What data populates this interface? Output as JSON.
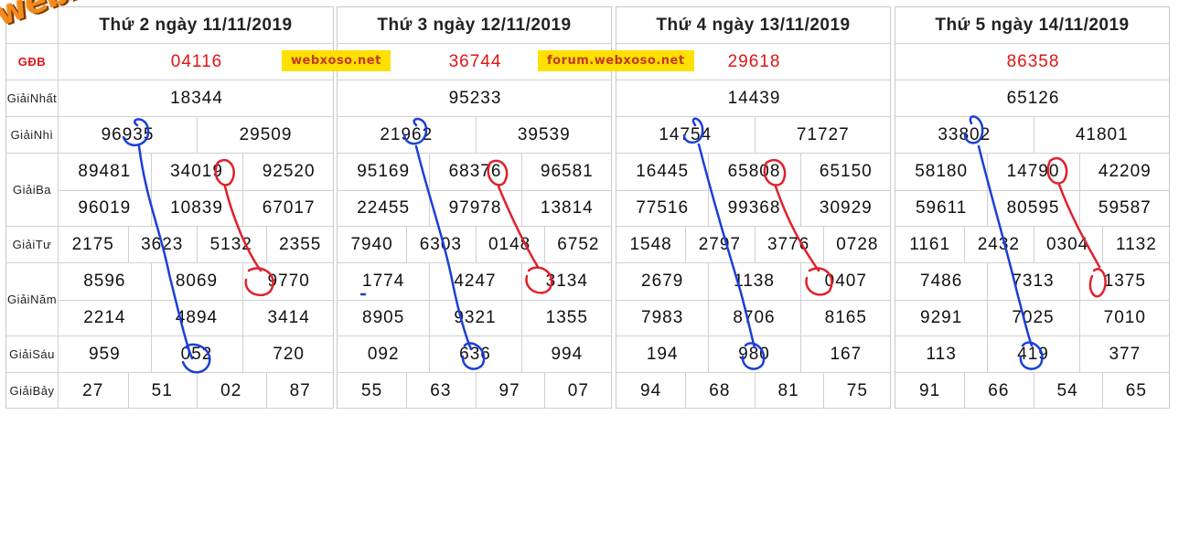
{
  "labels": {
    "special": "GĐB",
    "first": [
      "Giải",
      "Nhất"
    ],
    "second": [
      "Giải",
      "Nhì"
    ],
    "third": [
      "Giải",
      "Ba"
    ],
    "fourth": [
      "Giải",
      "Tư"
    ],
    "fifth": [
      "Giải",
      "Năm"
    ],
    "sixth": [
      "Giải",
      "Sáu"
    ],
    "seventh": [
      "Giải",
      "Bảy"
    ]
  },
  "watermark": "webxoso.net",
  "badges": [
    "webxoso.net",
    "forum.webxoso.net"
  ],
  "boards": [
    {
      "title": "Thứ 2 ngày 11/11/2019",
      "special": "04116",
      "first": "18344",
      "second": [
        "96935",
        "29509"
      ],
      "third": [
        "89481",
        "34019",
        "92520",
        "96019",
        "10839",
        "67017"
      ],
      "fourth": [
        "2175",
        "3623",
        "5132",
        "2355"
      ],
      "fifth": [
        "8596",
        "8069",
        "9770",
        "2214",
        "4894",
        "3414"
      ],
      "sixth": [
        "959",
        "052",
        "720"
      ],
      "seventh": [
        "27",
        "51",
        "02",
        "87"
      ]
    },
    {
      "title": "Thứ 3 ngày 12/11/2019",
      "special": "36744",
      "first": "95233",
      "second": [
        "21962",
        "39539"
      ],
      "third": [
        "95169",
        "68376",
        "96581",
        "22455",
        "97978",
        "13814"
      ],
      "fourth": [
        "7940",
        "6303",
        "0148",
        "6752"
      ],
      "fifth": [
        "1774",
        "4247",
        "3134",
        "8905",
        "9321",
        "1355"
      ],
      "sixth": [
        "092",
        "636",
        "994"
      ],
      "seventh": [
        "55",
        "63",
        "97",
        "07"
      ]
    },
    {
      "title": "Thứ 4 ngày 13/11/2019",
      "special": "29618",
      "first": "14439",
      "second": [
        "14754",
        "71727"
      ],
      "third": [
        "16445",
        "65808",
        "65150",
        "77516",
        "99368",
        "30929"
      ],
      "fourth": [
        "1548",
        "2797",
        "3776",
        "0728"
      ],
      "fifth": [
        "2679",
        "1138",
        "0407",
        "7983",
        "8706",
        "8165"
      ],
      "sixth": [
        "194",
        "980",
        "167"
      ],
      "seventh": [
        "94",
        "68",
        "81",
        "75"
      ]
    },
    {
      "title": "Thứ 5 ngày 14/11/2019",
      "special": "86358",
      "first": "65126",
      "second": [
        "33802",
        "41801"
      ],
      "third": [
        "58180",
        "14790",
        "42209",
        "59611",
        "80595",
        "59587"
      ],
      "fourth": [
        "1161",
        "2432",
        "0304",
        "1132"
      ],
      "fifth": [
        "7486",
        "7313",
        "1375",
        "9291",
        "7025",
        "7010"
      ],
      "sixth": [
        "113",
        "419",
        "377"
      ],
      "seventh": [
        "91",
        "66",
        "54",
        "65"
      ]
    }
  ],
  "colors": {
    "special": "#e01515",
    "blue_ink": "#1b3fd6",
    "red_ink": "#e0202a",
    "badge": "#ffe000"
  }
}
